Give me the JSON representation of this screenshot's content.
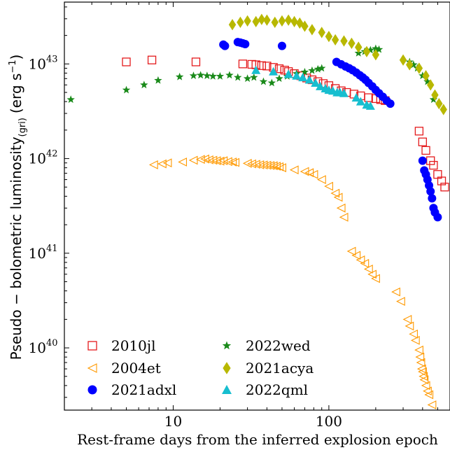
{
  "chart_data": {
    "type": "scatter",
    "xlabel": "Rest-frame days from the inferred explosion epoch",
    "ylabel_main": "Pseudo − bolometric luminosity",
    "ylabel_sub": "(gri)",
    "ylabel_unit": "(erg s",
    "ylabel_unit_sup": "−1",
    "ylabel_unit_end": ")",
    "x_scale": "log",
    "y_scale": "log",
    "xlim": [
      2,
      600
    ],
    "ylim": [
      2.2e+39,
      4.5e+43
    ],
    "grid": false,
    "legend_position": "bottom-left",
    "x_ticks": [
      {
        "value": 10,
        "label": "10"
      },
      {
        "value": 100,
        "label": "100"
      }
    ],
    "y_ticks": [
      {
        "value": 1e+40,
        "base": "10",
        "exp": "40"
      },
      {
        "value": 1e+41,
        "base": "10",
        "exp": "41"
      },
      {
        "value": 1e+42,
        "base": "10",
        "exp": "42"
      },
      {
        "value": 1e+43,
        "base": "10",
        "exp": "43"
      }
    ],
    "series": [
      {
        "name": "2010jl",
        "marker": "open-square",
        "color": "#e41a1c",
        "points": [
          [
            5.0,
            1.05e+43
          ],
          [
            7.3,
            1.1e+43
          ],
          [
            14.0,
            1.05e+43
          ],
          [
            28,
            1e+43
          ],
          [
            32,
            9.9e+42
          ],
          [
            34,
            9.8e+42
          ],
          [
            37,
            9.6e+42
          ],
          [
            40,
            9.5e+42
          ],
          [
            44,
            9.2e+42
          ],
          [
            48,
            8.9e+42
          ],
          [
            52,
            8.6e+42
          ],
          [
            55,
            8.3e+42
          ],
          [
            60,
            7.9e+42
          ],
          [
            66,
            7.5e+42
          ],
          [
            72,
            7.1e+42
          ],
          [
            78,
            6.8e+42
          ],
          [
            85,
            6.5e+42
          ],
          [
            92,
            6.2e+42
          ],
          [
            100,
            5.9e+42
          ],
          [
            110,
            5.5e+42
          ],
          [
            120,
            5.2e+42
          ],
          [
            130,
            5e+42
          ],
          [
            145,
            4.8e+42
          ],
          [
            160,
            4.6e+42
          ],
          [
            180,
            4.4e+42
          ],
          [
            200,
            4.3e+42
          ],
          [
            215,
            4.2e+42
          ],
          [
            230,
            4.1e+42
          ],
          [
            380,
            1.95e+42
          ],
          [
            400,
            1.5e+42
          ],
          [
            420,
            1.22e+42
          ],
          [
            450,
            9.5e+41
          ],
          [
            470,
            8.5e+41
          ],
          [
            500,
            6.8e+41
          ],
          [
            530,
            5.8e+41
          ],
          [
            555,
            5e+41
          ]
        ]
      },
      {
        "name": "2004et",
        "marker": "open-triangle-left",
        "color": "#ff9900",
        "points": [
          [
            7.5,
            8.6e+41
          ],
          [
            8.5,
            8.8e+41
          ],
          [
            9.2,
            9e+41
          ],
          [
            11.5,
            9.2e+41
          ],
          [
            13.5,
            9.6e+41
          ],
          [
            15.0,
            9.8e+41
          ],
          [
            16.0,
            9.9e+41
          ],
          [
            17.0,
            9.7e+41
          ],
          [
            18.0,
            9.6e+41
          ],
          [
            19.0,
            9.5e+41
          ],
          [
            20.0,
            9.4e+41
          ],
          [
            21.0,
            9.5e+41
          ],
          [
            22.5,
            9.3e+41
          ],
          [
            24.0,
            9.2e+41
          ],
          [
            25.0,
            9.1e+41
          ],
          [
            30,
            8.9e+41
          ],
          [
            32,
            8.8e+41
          ],
          [
            34,
            8.7e+41
          ],
          [
            36,
            8.6e+41
          ],
          [
            38,
            8.55e+41
          ],
          [
            40,
            8.5e+41
          ],
          [
            42,
            8.45e+41
          ],
          [
            44,
            8.4e+41
          ],
          [
            46,
            8.3e+41
          ],
          [
            48,
            8.2e+41
          ],
          [
            50,
            8e+41
          ],
          [
            60,
            7.6e+41
          ],
          [
            70,
            7.3e+41
          ],
          [
            75,
            7.1e+41
          ],
          [
            80,
            6.8e+41
          ],
          [
            90,
            6e+41
          ],
          [
            100,
            5.1e+41
          ],
          [
            110,
            4.3e+41
          ],
          [
            115,
            3.9e+41
          ],
          [
            120,
            3e+41
          ],
          [
            125,
            2.4e+41
          ],
          [
            140,
            1.05e+41
          ],
          [
            150,
            9.5e+40
          ],
          [
            160,
            8.5e+40
          ],
          [
            170,
            7.8e+40
          ],
          [
            180,
            6.8e+40
          ],
          [
            190,
            6e+40
          ],
          [
            200,
            5.4e+40
          ],
          [
            270,
            3.9e+40
          ],
          [
            290,
            3.1e+40
          ],
          [
            320,
            2e+40
          ],
          [
            330,
            1.7e+40
          ],
          [
            350,
            1.4e+40
          ],
          [
            360,
            1.2e+40
          ],
          [
            380,
            9.5e+39
          ],
          [
            385,
            8e+39
          ],
          [
            390,
            7e+39
          ],
          [
            395,
            6e+39
          ],
          [
            400,
            5.6e+39
          ],
          [
            405,
            5e+39
          ],
          [
            410,
            4.6e+39
          ],
          [
            420,
            4e+39
          ],
          [
            430,
            3.5e+39
          ],
          [
            440,
            3.2e+39
          ],
          [
            460,
            2.5e+39
          ]
        ]
      },
      {
        "name": "2021adxl",
        "marker": "filled-circle",
        "color": "#0000ff",
        "points": [
          [
            21,
            1.6e+43
          ],
          [
            21.5,
            1.55e+43
          ],
          [
            26,
            1.7e+43
          ],
          [
            27,
            1.68e+43
          ],
          [
            28,
            1.65e+43
          ],
          [
            29,
            1.62e+43
          ],
          [
            50,
            1.55e+43
          ],
          [
            112,
            1.05e+43
          ],
          [
            120,
            9.9e+42
          ],
          [
            128,
            9.4e+42
          ],
          [
            135,
            9e+42
          ],
          [
            142,
            8.6e+42
          ],
          [
            150,
            8.1e+42
          ],
          [
            158,
            7.6e+42
          ],
          [
            165,
            7.2e+42
          ],
          [
            172,
            6.8e+42
          ],
          [
            180,
            6.3e+42
          ],
          [
            190,
            5.8e+42
          ],
          [
            200,
            5.3e+42
          ],
          [
            210,
            4.9e+42
          ],
          [
            222,
            4.5e+42
          ],
          [
            235,
            4.1e+42
          ],
          [
            248,
            3.8e+42
          ],
          [
            400,
            9.5e+41
          ],
          [
            410,
            7.5e+41
          ],
          [
            420,
            6.8e+41
          ],
          [
            430,
            6e+41
          ],
          [
            440,
            5.2e+41
          ],
          [
            450,
            4.5e+41
          ],
          [
            460,
            3.8e+41
          ],
          [
            470,
            3e+41
          ],
          [
            480,
            2.7e+41
          ],
          [
            500,
            2.4e+41
          ]
        ]
      },
      {
        "name": "2022wed",
        "marker": "filled-star",
        "color": "#1a8a1a",
        "points": [
          [
            2.2,
            4.2e+42
          ],
          [
            5.0,
            5.3e+42
          ],
          [
            6.5,
            6e+42
          ],
          [
            8.0,
            6.7e+42
          ],
          [
            11.0,
            7.3e+42
          ],
          [
            13.5,
            7.5e+42
          ],
          [
            15.0,
            7.6e+42
          ],
          [
            16.5,
            7.5e+42
          ],
          [
            18.0,
            7.4e+42
          ],
          [
            20.0,
            7.4e+42
          ],
          [
            23.0,
            7.6e+42
          ],
          [
            26.0,
            7.2e+42
          ],
          [
            30,
            7e+42
          ],
          [
            33,
            7.2e+42
          ],
          [
            38,
            6.5e+42
          ],
          [
            43,
            6.3e+42
          ],
          [
            48,
            7e+42
          ],
          [
            54,
            7.4e+42
          ],
          [
            62,
            7.9e+42
          ],
          [
            70,
            8.2e+42
          ],
          [
            78,
            8.5e+42
          ],
          [
            85,
            8.8e+42
          ],
          [
            90,
            9e+42
          ],
          [
            155,
            1.3e+43
          ],
          [
            170,
            1.35e+43
          ],
          [
            185,
            1.4e+43
          ],
          [
            200,
            1.45e+43
          ],
          [
            210,
            1.42e+43
          ],
          [
            330,
            1.05e+43
          ],
          [
            350,
            9.8e+42
          ],
          [
            370,
            9e+42
          ],
          [
            400,
            7.5e+42
          ],
          [
            430,
            6.5e+42
          ],
          [
            470,
            4.2e+42
          ]
        ]
      },
      {
        "name": "2021acya",
        "marker": "filled-diamond",
        "color": "#b8b800",
        "points": [
          [
            24,
            2.6e+43
          ],
          [
            27,
            2.75e+43
          ],
          [
            30,
            2.85e+43
          ],
          [
            34,
            2.8e+43
          ],
          [
            37,
            2.95e+43
          ],
          [
            40,
            2.9e+43
          ],
          [
            45,
            2.75e+43
          ],
          [
            50,
            2.85e+43
          ],
          [
            55,
            2.9e+43
          ],
          [
            60,
            2.8e+43
          ],
          [
            65,
            2.7e+43
          ],
          [
            70,
            2.5e+43
          ],
          [
            78,
            2.3e+43
          ],
          [
            90,
            2.15e+43
          ],
          [
            100,
            1.95e+43
          ],
          [
            110,
            1.8e+43
          ],
          [
            125,
            1.75e+43
          ],
          [
            140,
            1.65e+43
          ],
          [
            155,
            1.5e+43
          ],
          [
            175,
            1.35e+43
          ],
          [
            200,
            1.25e+43
          ],
          [
            300,
            1.1e+43
          ],
          [
            330,
            9.8e+42
          ],
          [
            380,
            9e+42
          ],
          [
            420,
            7.5e+42
          ],
          [
            450,
            6e+42
          ],
          [
            480,
            4.7e+42
          ],
          [
            510,
            3.8e+42
          ],
          [
            545,
            3.3e+42
          ]
        ]
      },
      {
        "name": "2022qml",
        "marker": "filled-triangle-up",
        "color": "#17becf",
        "points": [
          [
            34,
            8.6e+42
          ],
          [
            44,
            8.3e+42
          ],
          [
            55,
            7.8e+42
          ],
          [
            62,
            7.5e+42
          ],
          [
            68,
            7.2e+42
          ],
          [
            75,
            6.8e+42
          ],
          [
            82,
            6.3e+42
          ],
          [
            88,
            5.8e+42
          ],
          [
            95,
            5.5e+42
          ],
          [
            100,
            5.3e+42
          ],
          [
            106,
            5.2e+42
          ],
          [
            113,
            5e+42
          ],
          [
            118,
            5e+42
          ],
          [
            125,
            4.9e+42
          ],
          [
            150,
            4.4e+42
          ],
          [
            160,
            4e+42
          ],
          [
            175,
            3.7e+42
          ],
          [
            185,
            3.6e+42
          ]
        ]
      }
    ]
  }
}
